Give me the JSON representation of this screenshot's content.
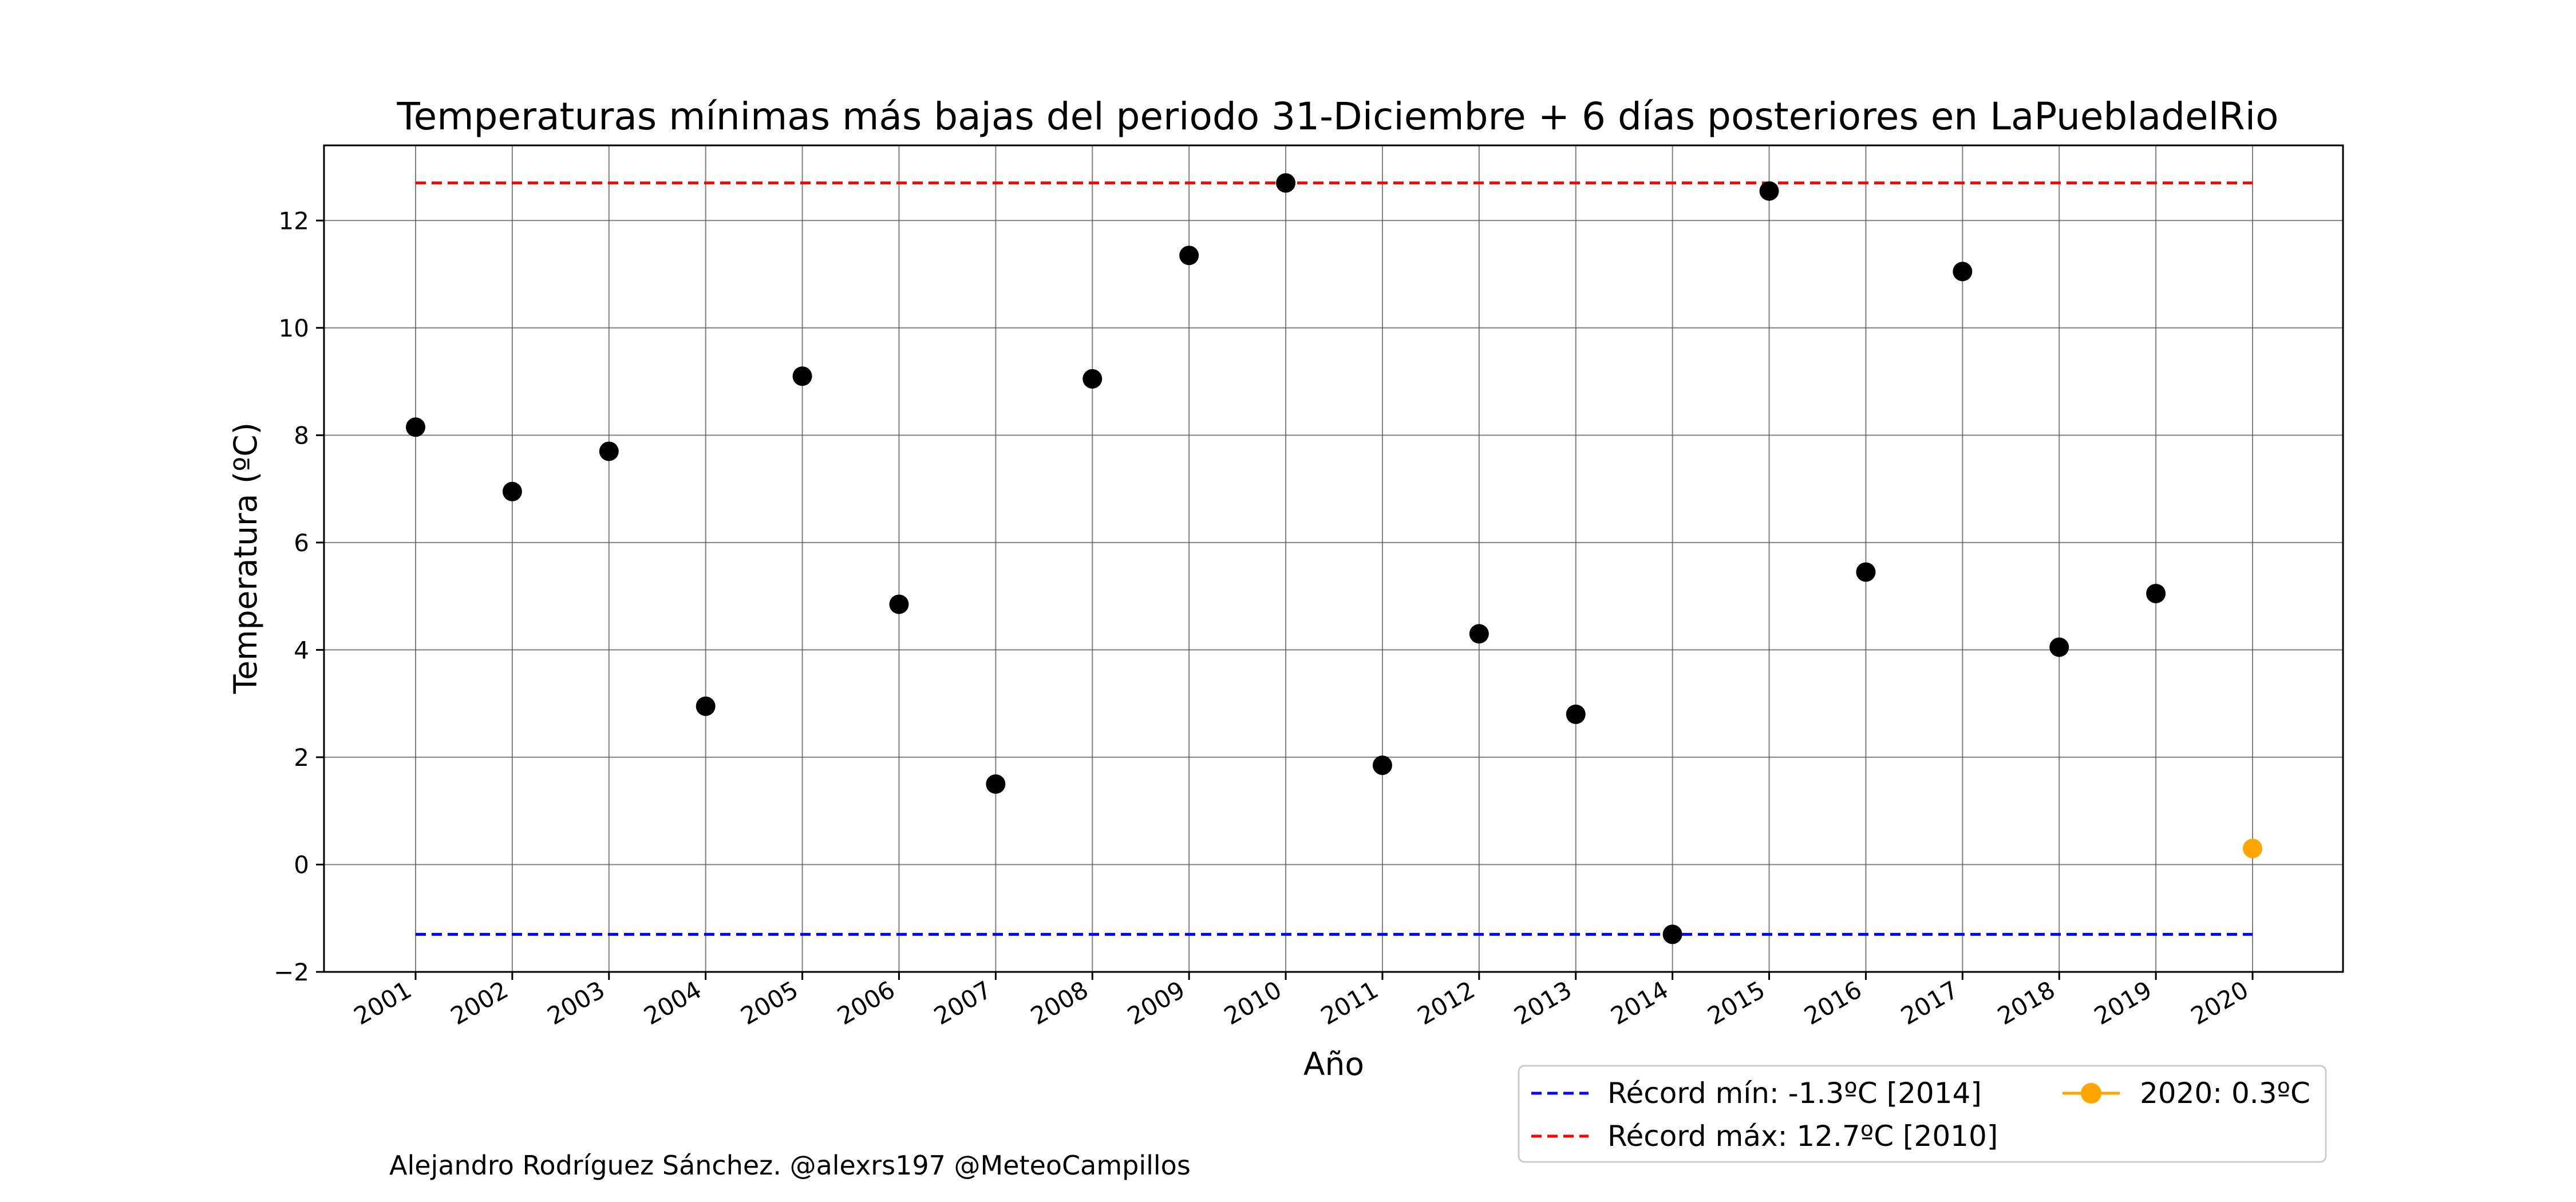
{
  "chart_data": {
    "type": "scatter",
    "title": "Temperaturas mínimas más bajas del periodo 31-Diciembre + 6 días posteriores en LaPuebladelRio",
    "xlabel": "Año",
    "ylabel": "Temperatura (ºC)",
    "ylim": [
      -2,
      13.4
    ],
    "yticks": [
      -2,
      0,
      2,
      4,
      6,
      8,
      10,
      12
    ],
    "grid": true,
    "categories": [
      "2001",
      "2002",
      "2003",
      "2004",
      "2005",
      "2006",
      "2007",
      "2008",
      "2009",
      "2010",
      "2011",
      "2012",
      "2013",
      "2014",
      "2015",
      "2016",
      "2017",
      "2018",
      "2019",
      "2020"
    ],
    "series": [
      {
        "color": "#000000",
        "values": [
          8.15,
          6.95,
          7.7,
          2.95,
          9.1,
          4.85,
          1.5,
          9.05,
          11.35,
          12.7,
          1.85,
          4.3,
          2.8,
          -1.3,
          12.55,
          5.45,
          11.05,
          4.05,
          5.05,
          null
        ]
      },
      {
        "name": "2020: 0.3ºC",
        "color": "#ffa500",
        "values": [
          null,
          null,
          null,
          null,
          null,
          null,
          null,
          null,
          null,
          null,
          null,
          null,
          null,
          null,
          null,
          null,
          null,
          null,
          null,
          0.3
        ]
      }
    ],
    "reference_lines": [
      {
        "name": "Récord mín: -1.3ºC [2014]",
        "value": -1.3,
        "color": "#0000ff",
        "style": "dashed"
      },
      {
        "name": "Récord máx: 12.7ºC [2010]",
        "value": 12.7,
        "color": "#ff0000",
        "style": "dashed"
      }
    ],
    "legend_position": "lower-right, outside plot"
  },
  "credit": "Alejandro Rodríguez Sánchez. @alexrs197 @MeteoCampillos"
}
